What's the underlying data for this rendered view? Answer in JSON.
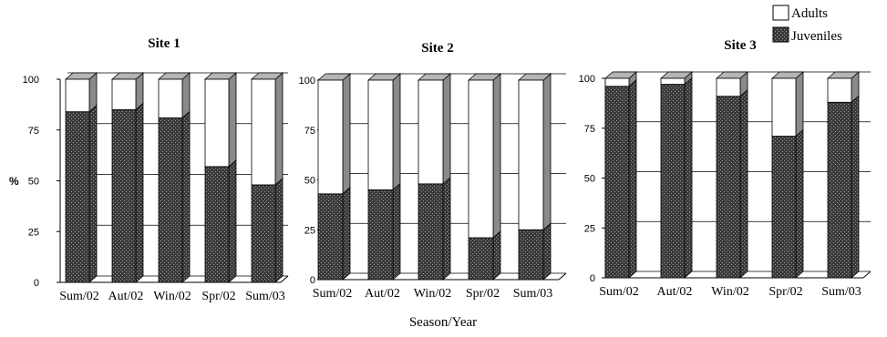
{
  "legend": [
    {
      "label": "Adults",
      "color": "#ffffff"
    },
    {
      "label": "Juveniles",
      "color": "#3a3a3a"
    }
  ],
  "xlabel": "Season/Year",
  "ylabel": "%",
  "colors": {
    "juvenile_fill": "#3a3a3a",
    "adult_fill": "#ffffff",
    "bar_side": "#8a8a8a",
    "bar_top": "#b5b5b5",
    "grid": "#000000"
  },
  "chart_data": [
    {
      "type": "bar",
      "stacked": true,
      "title": "Site 1",
      "categories": [
        "Sum/02",
        "Aut/02",
        "Win/02",
        "Spr/02",
        "Sum/03"
      ],
      "series": [
        {
          "name": "Juveniles",
          "values": [
            84,
            85,
            81,
            57,
            48
          ]
        },
        {
          "name": "Adults",
          "values": [
            16,
            15,
            19,
            43,
            52
          ]
        }
      ],
      "ylim": [
        0,
        100
      ],
      "yticks": [
        0,
        25,
        50,
        75,
        100
      ]
    },
    {
      "type": "bar",
      "stacked": true,
      "title": "Site 2",
      "categories": [
        "Sum/02",
        "Aut/02",
        "Win/02",
        "Spr/02",
        "Sum/03"
      ],
      "series": [
        {
          "name": "Juveniles",
          "values": [
            43,
            45,
            48,
            21,
            25
          ]
        },
        {
          "name": "Adults",
          "values": [
            57,
            55,
            52,
            79,
            75
          ]
        }
      ],
      "ylim": [
        0,
        100
      ],
      "yticks": [
        0,
        25,
        50,
        75,
        100
      ]
    },
    {
      "type": "bar",
      "stacked": true,
      "title": "Site 3",
      "categories": [
        "Sum/02",
        "Aut/02",
        "Win/02",
        "Spr/02",
        "Sum/03"
      ],
      "series": [
        {
          "name": "Juveniles",
          "values": [
            96,
            97,
            91,
            71,
            88
          ]
        },
        {
          "name": "Adults",
          "values": [
            4,
            3,
            9,
            29,
            12
          ]
        }
      ],
      "ylim": [
        0,
        100
      ],
      "yticks": [
        0,
        25,
        50,
        75,
        100
      ]
    }
  ]
}
